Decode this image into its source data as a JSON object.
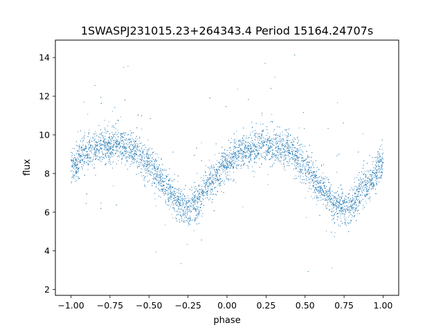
{
  "chart_data": {
    "type": "scatter",
    "title": "1SWASPJ231015.23+264343.4 Period 15164.24707s",
    "xlabel": "phase",
    "ylabel": "flux",
    "xlim": [
      -1.1,
      1.1
    ],
    "ylim": [
      1.7,
      14.9
    ],
    "xticks": [
      -1.0,
      -0.75,
      -0.5,
      -0.25,
      0.0,
      0.25,
      0.5,
      0.75,
      1.0
    ],
    "xtick_labels": [
      "−1.00",
      "−0.75",
      "−0.50",
      "−0.25",
      "0.00",
      "0.25",
      "0.50",
      "0.75",
      "1.00"
    ],
    "yticks": [
      2,
      4,
      6,
      8,
      10,
      12,
      14
    ],
    "ytick_labels": [
      "2",
      "4",
      "6",
      "8",
      "10",
      "12",
      "14"
    ],
    "grid": false,
    "legend": "none",
    "marker_color": "#1f77b4",
    "phase_range": [
      -1.0,
      1.0
    ],
    "light_curve": {
      "description_points_phase": [
        -1.0,
        -0.9,
        -0.8,
        -0.7,
        -0.6,
        -0.5,
        -0.4,
        -0.3,
        -0.25,
        -0.2,
        -0.1,
        0.0,
        0.1,
        0.2,
        0.25,
        0.3,
        0.4,
        0.5,
        0.6,
        0.7,
        0.75,
        0.8,
        0.9,
        1.0
      ],
      "mean_flux": [
        8.4,
        9.1,
        9.4,
        9.5,
        9.3,
        8.5,
        7.4,
        6.4,
        6.2,
        6.5,
        7.6,
        8.6,
        9.1,
        9.4,
        9.45,
        9.4,
        9.2,
        8.4,
        7.3,
        6.4,
        6.2,
        6.5,
        7.4,
        8.5
      ],
      "scatter": 0.45
    },
    "n_points": 9000
  }
}
